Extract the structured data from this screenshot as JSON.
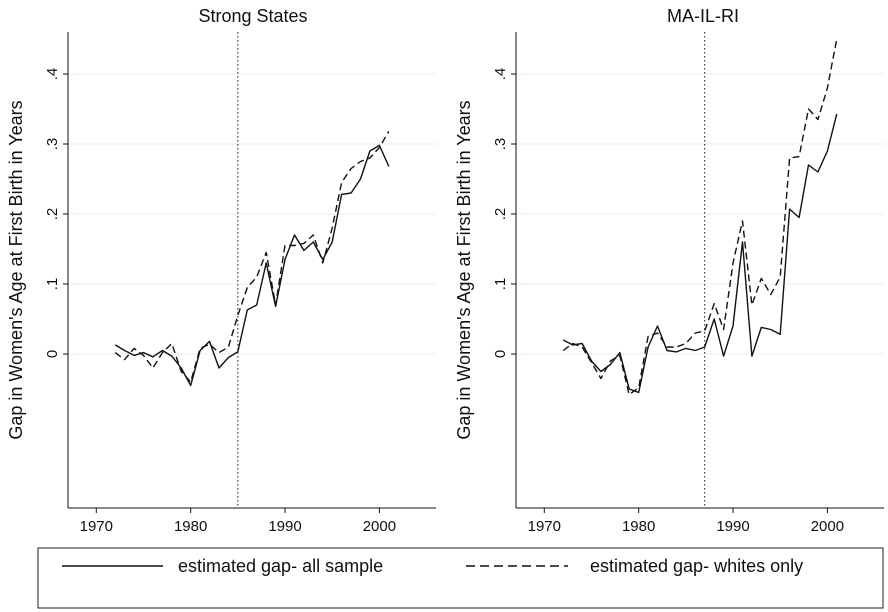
{
  "chart_data": [
    {
      "type": "line",
      "title": "Strong States",
      "ylabel": "Gap in Women's Age at First Birth in Years",
      "xlabel": "",
      "xlim": [
        1967,
        2006
      ],
      "ylim": [
        -0.22,
        0.46
      ],
      "xticks": [
        1970,
        1980,
        1990,
        2000
      ],
      "yticks": [
        0,
        0.1,
        0.2,
        0.3,
        0.4
      ],
      "ytick_labels": [
        "0",
        ".1",
        ".2",
        ".3",
        ".4"
      ],
      "vline": 1985,
      "grid": "horizontal",
      "series": [
        {
          "name": "estimated gap- all sample",
          "style": "solid",
          "points": [
            [
              1972,
              0.013
            ],
            [
              1973,
              0.005
            ],
            [
              1974,
              -0.002
            ],
            [
              1975,
              0.002
            ],
            [
              1976,
              -0.004
            ],
            [
              1977,
              0.005
            ],
            [
              1978,
              -0.003
            ],
            [
              1979,
              -0.02
            ],
            [
              1980,
              -0.045
            ],
            [
              1981,
              0.005
            ],
            [
              1982,
              0.018
            ],
            [
              1983,
              -0.02
            ],
            [
              1984,
              -0.005
            ],
            [
              1985,
              0.003
            ],
            [
              1986,
              0.063
            ],
            [
              1987,
              0.07
            ],
            [
              1988,
              0.13
            ],
            [
              1989,
              0.068
            ],
            [
              1990,
              0.135
            ],
            [
              1991,
              0.17
            ],
            [
              1992,
              0.148
            ],
            [
              1993,
              0.16
            ],
            [
              1994,
              0.135
            ],
            [
              1995,
              0.16
            ],
            [
              1996,
              0.228
            ],
            [
              1997,
              0.23
            ],
            [
              1998,
              0.25
            ],
            [
              1999,
              0.29
            ],
            [
              2000,
              0.298
            ],
            [
              2001,
              0.268
            ]
          ]
        },
        {
          "name": "estimated gap- whites only",
          "style": "dashed",
          "points": [
            [
              1972,
              0.002
            ],
            [
              1973,
              -0.008
            ],
            [
              1974,
              0.008
            ],
            [
              1975,
              -0.002
            ],
            [
              1976,
              -0.02
            ],
            [
              1977,
              0.002
            ],
            [
              1978,
              0.015
            ],
            [
              1979,
              -0.025
            ],
            [
              1980,
              -0.04
            ],
            [
              1981,
              0.008
            ],
            [
              1982,
              0.014
            ],
            [
              1983,
              0.002
            ],
            [
              1984,
              0.01
            ],
            [
              1985,
              0.055
            ],
            [
              1986,
              0.095
            ],
            [
              1987,
              0.11
            ],
            [
              1988,
              0.145
            ],
            [
              1989,
              0.07
            ],
            [
              1990,
              0.155
            ],
            [
              1991,
              0.155
            ],
            [
              1992,
              0.158
            ],
            [
              1993,
              0.17
            ],
            [
              1994,
              0.13
            ],
            [
              1995,
              0.18
            ],
            [
              1996,
              0.245
            ],
            [
              1997,
              0.265
            ],
            [
              1998,
              0.275
            ],
            [
              1999,
              0.28
            ],
            [
              2000,
              0.295
            ],
            [
              2001,
              0.318
            ]
          ]
        }
      ]
    },
    {
      "type": "line",
      "title": "MA-IL-RI",
      "ylabel": "Gap in Women's Age at First Birth in Years",
      "xlabel": "",
      "xlim": [
        1967,
        2006
      ],
      "ylim": [
        -0.22,
        0.46
      ],
      "xticks": [
        1970,
        1980,
        1990,
        2000
      ],
      "yticks": [
        0,
        0.1,
        0.2,
        0.3,
        0.4
      ],
      "ytick_labels": [
        "0",
        ".1",
        ".2",
        ".3",
        ".4"
      ],
      "vline": 1987,
      "grid": "horizontal",
      "series": [
        {
          "name": "estimated gap- all sample",
          "style": "solid",
          "points": [
            [
              1972,
              0.02
            ],
            [
              1973,
              0.013
            ],
            [
              1974,
              0.015
            ],
            [
              1975,
              -0.01
            ],
            [
              1976,
              -0.025
            ],
            [
              1977,
              -0.015
            ],
            [
              1978,
              0.002
            ],
            [
              1979,
              -0.05
            ],
            [
              1980,
              -0.055
            ],
            [
              1981,
              0.01
            ],
            [
              1982,
              0.04
            ],
            [
              1983,
              0.005
            ],
            [
              1984,
              0.003
            ],
            [
              1985,
              0.008
            ],
            [
              1986,
              0.005
            ],
            [
              1987,
              0.01
            ],
            [
              1988,
              0.05
            ],
            [
              1989,
              -0.003
            ],
            [
              1990,
              0.04
            ],
            [
              1991,
              0.16
            ],
            [
              1992,
              -0.003
            ],
            [
              1993,
              0.038
            ],
            [
              1994,
              0.035
            ],
            [
              1995,
              0.028
            ],
            [
              1996,
              0.207
            ],
            [
              1997,
              0.195
            ],
            [
              1998,
              0.27
            ],
            [
              1999,
              0.26
            ],
            [
              2000,
              0.29
            ],
            [
              2001,
              0.343
            ]
          ]
        },
        {
          "name": "estimated gap- whites only",
          "style": "dashed",
          "points": [
            [
              1972,
              0.005
            ],
            [
              1973,
              0.015
            ],
            [
              1974,
              0.01
            ],
            [
              1975,
              -0.012
            ],
            [
              1976,
              -0.035
            ],
            [
              1977,
              -0.01
            ],
            [
              1978,
              -0.002
            ],
            [
              1979,
              -0.058
            ],
            [
              1980,
              -0.048
            ],
            [
              1981,
              0.025
            ],
            [
              1982,
              0.03
            ],
            [
              1983,
              0.01
            ],
            [
              1984,
              0.01
            ],
            [
              1985,
              0.015
            ],
            [
              1986,
              0.03
            ],
            [
              1987,
              0.033
            ],
            [
              1988,
              0.072
            ],
            [
              1989,
              0.035
            ],
            [
              1990,
              0.13
            ],
            [
              1991,
              0.19
            ],
            [
              1992,
              0.07
            ],
            [
              1993,
              0.108
            ],
            [
              1994,
              0.085
            ],
            [
              1995,
              0.11
            ],
            [
              1996,
              0.28
            ],
            [
              1997,
              0.282
            ],
            [
              1998,
              0.35
            ],
            [
              1999,
              0.335
            ],
            [
              2000,
              0.38
            ],
            [
              2001,
              0.45
            ]
          ]
        }
      ]
    }
  ],
  "legend": {
    "items": [
      {
        "label": "estimated gap- all sample",
        "style": "solid"
      },
      {
        "label": "estimated gap- whites only",
        "style": "dashed"
      }
    ]
  }
}
